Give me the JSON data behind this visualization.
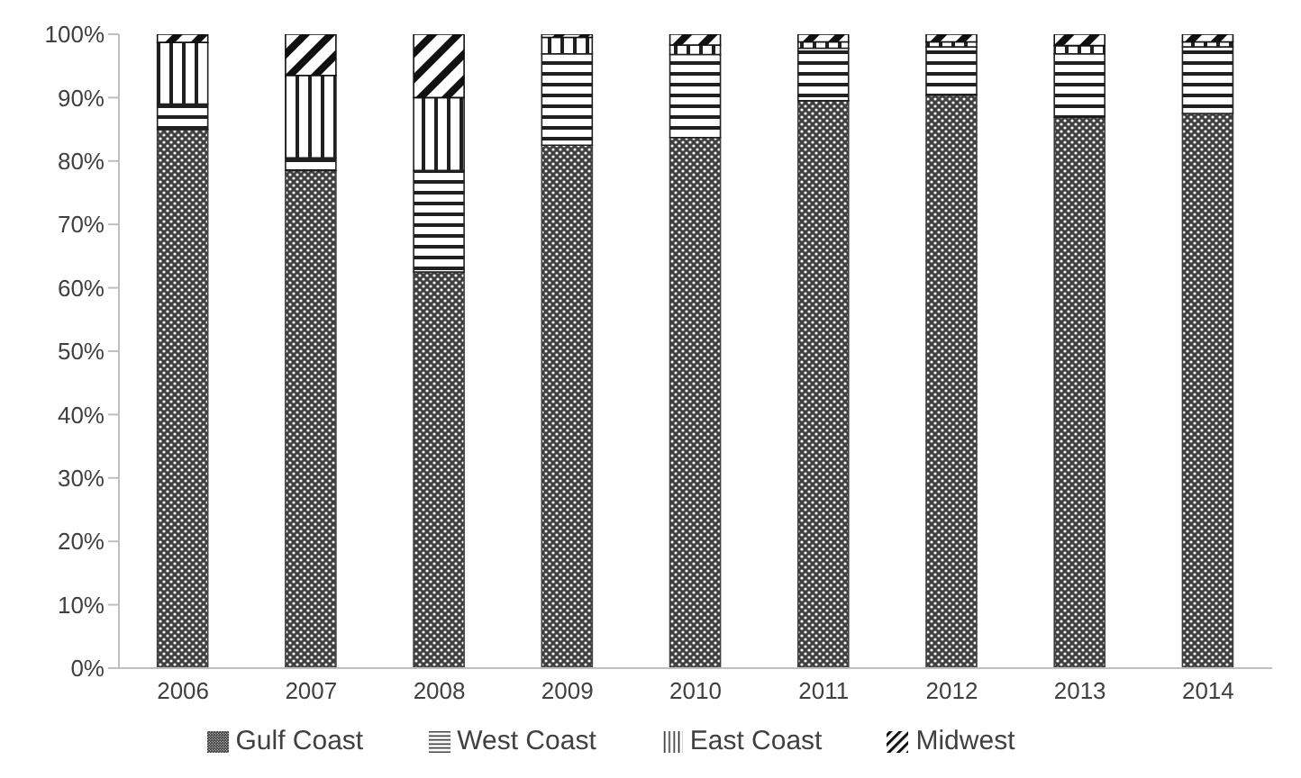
{
  "chart_data": {
    "type": "bar",
    "stacked": true,
    "categories": [
      "2006",
      "2007",
      "2008",
      "2009",
      "2010",
      "2011",
      "2012",
      "2013",
      "2014"
    ],
    "series": [
      {
        "name": "Gulf Coast",
        "color": "#404040",
        "values": [
          85,
          78.5,
          62.5,
          82.5,
          83.7,
          89.5,
          90.4,
          86.9,
          87.5
        ]
      },
      {
        "name": "West Coast",
        "color": "#202020",
        "values": [
          4,
          2,
          16,
          14.4,
          13.1,
          8.3,
          7.6,
          10,
          10.5
        ]
      },
      {
        "name": "East Coast",
        "color": "#202020",
        "values": [
          9.7,
          13,
          11.5,
          2.6,
          1.5,
          1,
          0.8,
          1.3,
          0.8
        ]
      },
      {
        "name": "Midwest",
        "color": "#101010",
        "values": [
          1.3,
          6.5,
          10,
          0.5,
          1.7,
          1.2,
          1.2,
          1.8,
          1.2
        ]
      }
    ],
    "ylim": [
      0,
      100
    ],
    "yticks": [
      {
        "value": 0,
        "label": "0%"
      },
      {
        "value": 10,
        "label": "10%"
      },
      {
        "value": 20,
        "label": "20%"
      },
      {
        "value": 30,
        "label": "30%"
      },
      {
        "value": 40,
        "label": "40%"
      },
      {
        "value": 50,
        "label": "50%"
      },
      {
        "value": 60,
        "label": "60%"
      },
      {
        "value": 70,
        "label": "70%"
      },
      {
        "value": 80,
        "label": "80%"
      },
      {
        "value": 90,
        "label": "90%"
      },
      {
        "value": 100,
        "label": "100%"
      }
    ],
    "legend": "bottom"
  }
}
